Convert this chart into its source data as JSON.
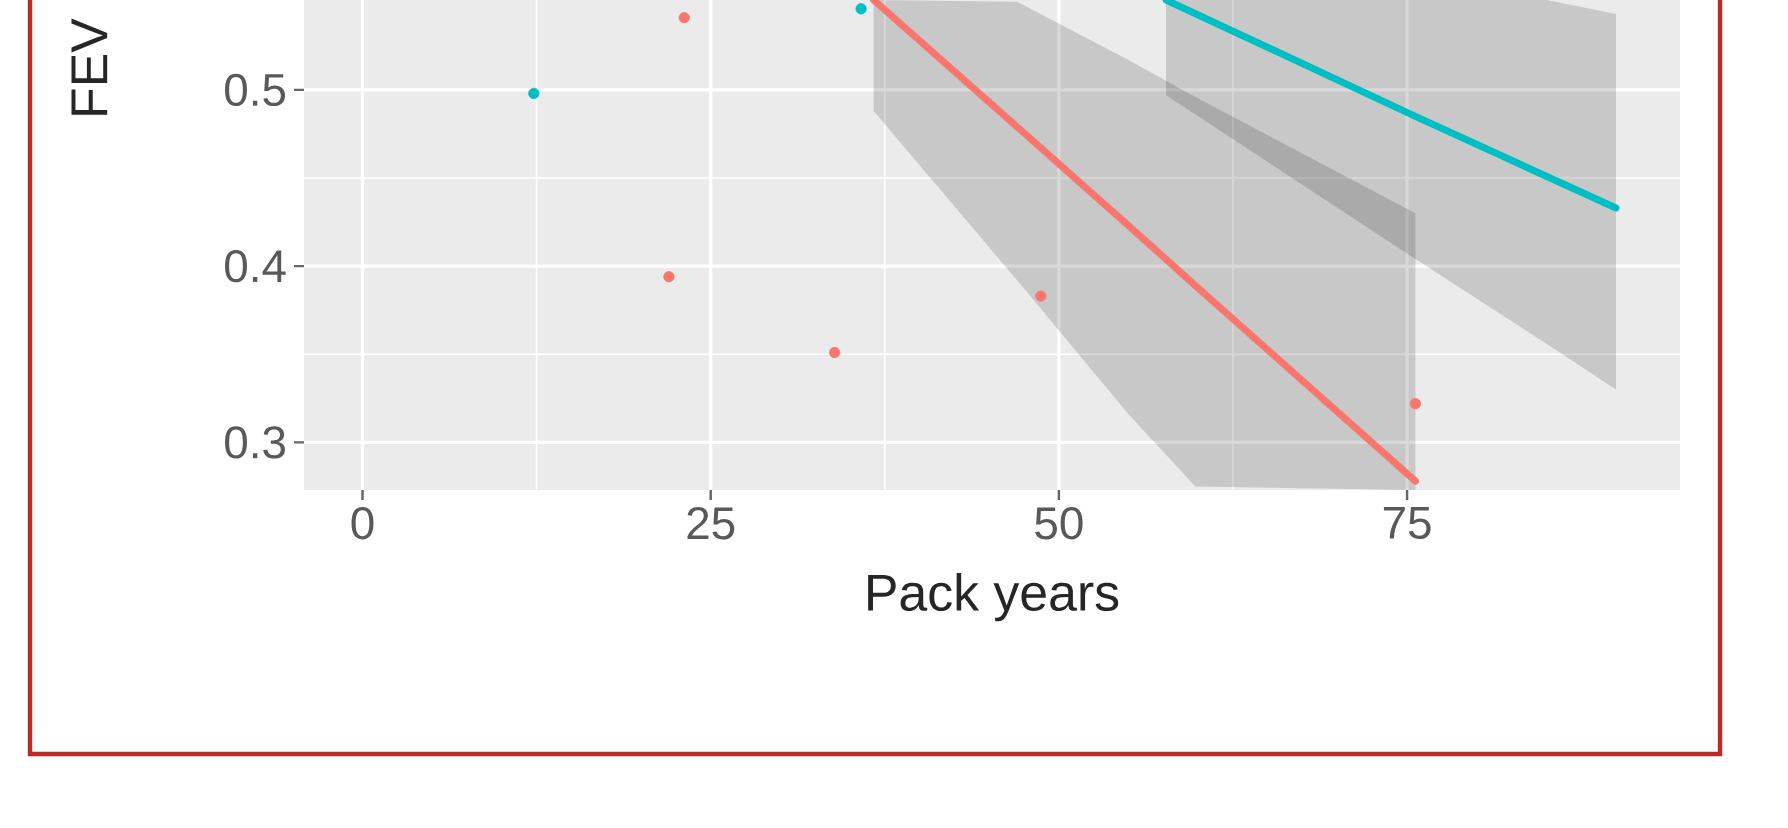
{
  "chart_data": {
    "type": "scatter",
    "xlabel": "Pack years",
    "ylabel": "FEV",
    "xlim": [
      -4.2,
      94.6
    ],
    "ylim": [
      0.273,
      0.551
    ],
    "xticks": [
      0,
      25,
      50,
      75
    ],
    "yticks": [
      0.3,
      0.4,
      0.5
    ],
    "grid": true,
    "series": [
      {
        "type": "line",
        "marker": "none",
        "color": "#f8766d",
        "x": [
          36.7,
          47,
          55,
          59.8,
          75.6
        ],
        "values": [
          0.551,
          0.479,
          0.423,
          0.389,
          0.278
        ],
        "lower": [
          0.488,
          0.392,
          0.316,
          0.275,
          0.273
        ],
        "upper": [
          0.551,
          0.55,
          0.517,
          0.496,
          0.43
        ]
      },
      {
        "type": "line",
        "marker": "none",
        "color": "#00bfc4",
        "x": [
          57.7,
          75.6,
          85,
          90
        ],
        "values": [
          0.551,
          0.485,
          0.451,
          0.433
        ],
        "lower": [
          0.497,
          0.404,
          0.356,
          0.33
        ],
        "upper": [
          0.551,
          0.551,
          0.551,
          0.543
        ]
      },
      {
        "type": "scatter",
        "marker": "circle",
        "color": "#f8766d",
        "x": [
          23.1,
          22,
          33.9,
          48.7,
          75.6
        ],
        "values": [
          0.541,
          0.394,
          0.351,
          0.383,
          0.322
        ]
      },
      {
        "type": "scatter",
        "marker": "circle",
        "color": "#00bfc4",
        "x": [
          12.3,
          35.8
        ],
        "values": [
          0.498,
          0.546
        ]
      }
    ]
  }
}
